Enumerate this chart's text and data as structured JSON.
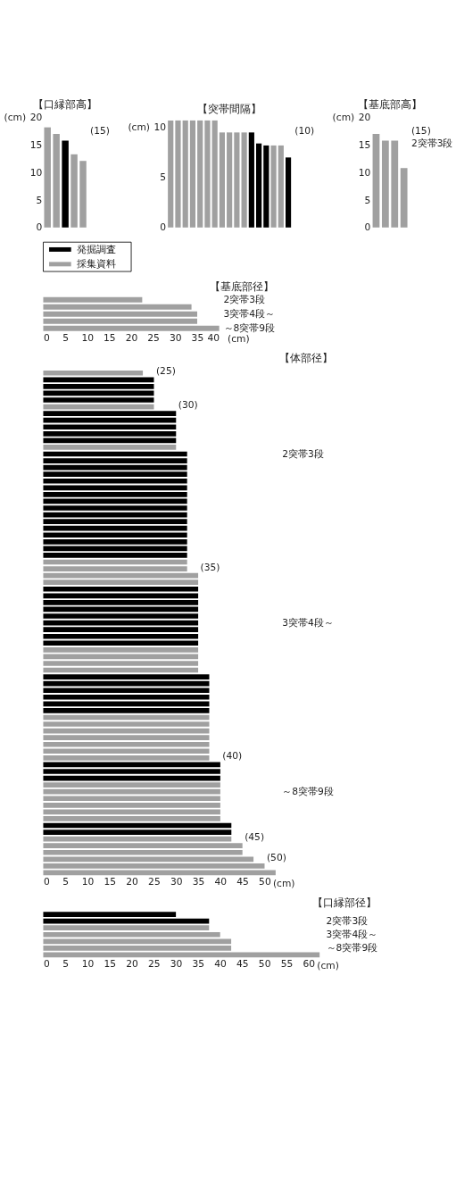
{
  "chart_data": [
    {
      "type": "bar",
      "title": "【口縁部高】",
      "ylabel": "(cm)",
      "categories": [
        null,
        null,
        null,
        null,
        null
      ],
      "ylim": [
        0,
        20
      ],
      "yticks": [
        0,
        5,
        10,
        15,
        20
      ],
      "tick_labels": "y",
      "values": [
        18.2,
        17,
        15.8,
        13.3,
        12.1
      ],
      "colors": [
        "#a0a0a0",
        "#a0a0a0",
        "#000000",
        "#a0a0a0",
        "#a0a0a0"
      ],
      "annotations": [
        "(15)"
      ]
    },
    {
      "type": "bar",
      "title": "【突帯間隔】",
      "ylabel": "(cm)",
      "categories": [
        null,
        null,
        null,
        null,
        null,
        null,
        null,
        null,
        null,
        null,
        null,
        null,
        null,
        null,
        null,
        null,
        null
      ],
      "ylim": [
        0,
        11
      ],
      "yticks": [
        0,
        5,
        10
      ],
      "tick_labels": "y",
      "values": [
        10.7,
        10.7,
        10.7,
        10.7,
        10.7,
        10.7,
        10.7,
        9.5,
        9.5,
        9.5,
        9.5,
        9.5,
        8.4,
        8.2,
        8.2,
        8.2,
        7.0
      ],
      "colors": [
        "#a0a0a0",
        "#a0a0a0",
        "#a0a0a0",
        "#a0a0a0",
        "#a0a0a0",
        "#a0a0a0",
        "#a0a0a0",
        "#a0a0a0",
        "#a0a0a0",
        "#a0a0a0",
        "#a0a0a0",
        "#000000",
        "#000000",
        "#000000",
        "#a0a0a0",
        "#a0a0a0",
        "#000000"
      ],
      "annotations": [
        "(10)"
      ]
    },
    {
      "type": "bar",
      "title": "【基底部高】",
      "ylabel": "(cm)",
      "categories": [
        null,
        null,
        null,
        null
      ],
      "ylim": [
        0,
        20
      ],
      "yticks": [
        0,
        5,
        10,
        15,
        20
      ],
      "tick_labels": "y",
      "values": [
        17,
        15.8,
        15.8,
        10.8
      ],
      "colors": [
        "#a0a0a0",
        "#a0a0a0",
        "#a0a0a0",
        "#a0a0a0"
      ],
      "annotations": [
        "(15)",
        "2突帯3段"
      ]
    },
    {
      "type": "other",
      "series": [
        {
          "name": "発掘調査",
          "color": "#000000"
        },
        {
          "name": "採集資料",
          "color": "#a0a0a0"
        }
      ]
    },
    {
      "type": "bar",
      "orientation": "horizontal",
      "title": "【基底部径】",
      "xlabel": "(cm)",
      "categories": [
        null,
        null,
        null,
        null,
        null
      ],
      "xlim": [
        0,
        40
      ],
      "xticks": [
        0,
        5,
        10,
        15,
        20,
        25,
        30,
        35,
        40
      ],
      "tick_labels": "x",
      "values": [
        22.5,
        33.7,
        35,
        35,
        40
      ],
      "colors": [
        "#a0a0a0",
        "#a0a0a0",
        "#a0a0a0",
        "#a0a0a0",
        "#a0a0a0"
      ],
      "annotations": [
        "2突帯3段",
        "3突帯4段～",
        "～8突帯9段"
      ]
    },
    {
      "type": "bar",
      "orientation": "horizontal",
      "title": "【体部径】",
      "xlabel": "(cm)",
      "categories": [
        null,
        null,
        null,
        null,
        null,
        null,
        null,
        null,
        null,
        null,
        null,
        null,
        null,
        null,
        null,
        null,
        null,
        null,
        null,
        null,
        null,
        null,
        null,
        null,
        null,
        null,
        null,
        null,
        null,
        null,
        null,
        null,
        null,
        null,
        null,
        null,
        null,
        null,
        null,
        null,
        null,
        null,
        null,
        null,
        null,
        null,
        null,
        null,
        null,
        null,
        null,
        null,
        null,
        null,
        null,
        null,
        null,
        null,
        null,
        null,
        null,
        null,
        null,
        null,
        null,
        null,
        null,
        null,
        null,
        null,
        null,
        null,
        null,
        null,
        null
      ],
      "xlim": [
        0,
        53
      ],
      "xticks": [
        0,
        5,
        10,
        15,
        20,
        25,
        30,
        35,
        40,
        45,
        50
      ],
      "tick_labels": "x",
      "values": [
        22.5,
        25,
        25,
        25,
        25,
        25,
        30,
        30,
        30,
        30,
        30,
        30,
        32.5,
        32.5,
        32.5,
        32.5,
        32.5,
        32.5,
        32.5,
        32.5,
        32.5,
        32.5,
        32.5,
        32.5,
        32.5,
        32.5,
        32.5,
        32.5,
        32.5,
        32.5,
        35,
        35,
        35,
        35,
        35,
        35,
        35,
        35,
        35,
        35,
        35,
        35,
        35,
        35,
        35,
        37.5,
        37.5,
        37.5,
        37.5,
        37.5,
        37.5,
        37.5,
        37.5,
        37.5,
        37.5,
        37.5,
        37.5,
        37.5,
        40,
        40,
        40,
        40,
        40,
        40,
        40,
        40,
        40,
        42.5,
        42.5,
        42.5,
        45,
        45,
        47.5,
        50,
        52.5
      ],
      "colors": [
        "#a0a0a0",
        "#000000",
        "#000000",
        "#000000",
        "#000000",
        "#a0a0a0",
        "#000000",
        "#000000",
        "#000000",
        "#000000",
        "#000000",
        "#a0a0a0",
        "#000000",
        "#000000",
        "#000000",
        "#000000",
        "#000000",
        "#000000",
        "#000000",
        "#000000",
        "#000000",
        "#000000",
        "#000000",
        "#000000",
        "#000000",
        "#000000",
        "#000000",
        "#000000",
        "#a0a0a0",
        "#a0a0a0",
        "#a0a0a0",
        "#a0a0a0",
        "#000000",
        "#000000",
        "#000000",
        "#000000",
        "#000000",
        "#000000",
        "#000000",
        "#000000",
        "#000000",
        "#a0a0a0",
        "#a0a0a0",
        "#a0a0a0",
        "#a0a0a0",
        "#000000",
        "#000000",
        "#000000",
        "#000000",
        "#000000",
        "#000000",
        "#a0a0a0",
        "#a0a0a0",
        "#a0a0a0",
        "#a0a0a0",
        "#a0a0a0",
        "#a0a0a0",
        "#a0a0a0",
        "#000000",
        "#000000",
        "#000000",
        "#a0a0a0",
        "#a0a0a0",
        "#a0a0a0",
        "#a0a0a0",
        "#a0a0a0",
        "#a0a0a0",
        "#000000",
        "#000000",
        "#a0a0a0",
        "#a0a0a0",
        "#a0a0a0",
        "#a0a0a0",
        "#a0a0a0",
        "#a0a0a0"
      ],
      "value_labels": [
        null,
        "(25)",
        null,
        null,
        null,
        null,
        "(30)",
        null,
        null,
        null,
        null,
        null,
        null,
        null,
        null,
        null,
        null,
        null,
        null,
        null,
        null,
        null,
        null,
        null,
        null,
        null,
        null,
        null,
        null,
        null,
        "(35)",
        null,
        null,
        null,
        null,
        null,
        null,
        null,
        null,
        null,
        null,
        null,
        null,
        null,
        null,
        null,
        null,
        null,
        null,
        null,
        null,
        null,
        null,
        null,
        null,
        null,
        null,
        null,
        "(40)",
        null,
        null,
        null,
        null,
        null,
        null,
        null,
        null,
        null,
        null,
        null,
        "(45)",
        null,
        null,
        "(50)",
        null
      ],
      "annotations": [
        "2突帯3段",
        "3突帯4段～",
        "～8突帯9段"
      ]
    },
    {
      "type": "bar",
      "orientation": "horizontal",
      "title": "【口縁部径】",
      "xlabel": "(cm)",
      "categories": [
        null,
        null,
        null,
        null,
        null,
        null,
        null
      ],
      "xlim": [
        0,
        63
      ],
      "xticks": [
        0,
        5,
        10,
        15,
        20,
        25,
        30,
        35,
        40,
        45,
        50,
        55,
        60
      ],
      "tick_labels": "x",
      "values": [
        30,
        37.5,
        37.5,
        40,
        42.5,
        42.5,
        62.5
      ],
      "colors": [
        "#000000",
        "#000000",
        "#a0a0a0",
        "#a0a0a0",
        "#a0a0a0",
        "#a0a0a0",
        "#a0a0a0"
      ],
      "annotations": [
        "2突帯3段",
        "3突帯4段～",
        "～8突帯9段"
      ]
    }
  ]
}
